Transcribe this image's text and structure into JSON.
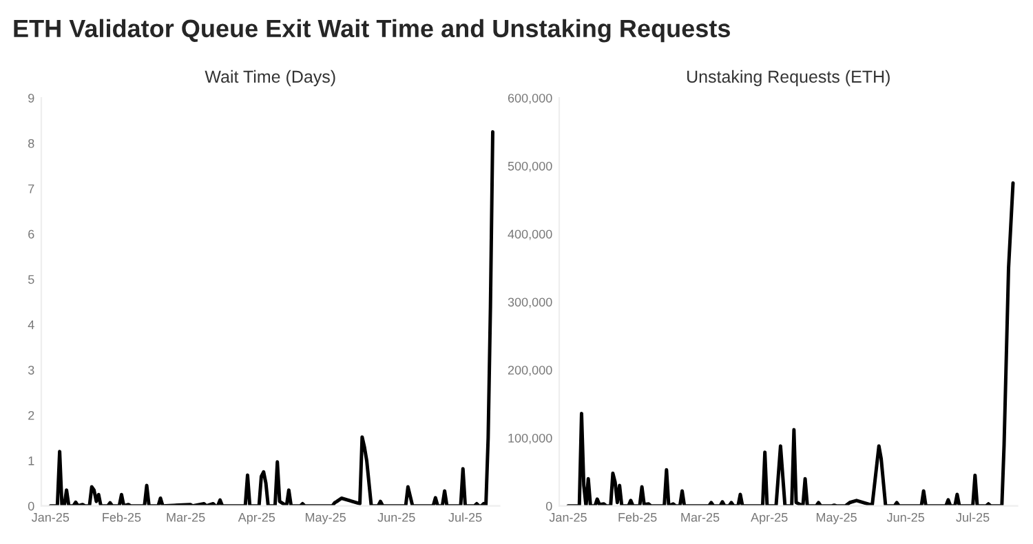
{
  "chart_data": [
    {
      "type": "line",
      "title": "ETH Validator Queue Exit Wait Time and Unstaking Requests",
      "subtitle": "Wait Time (Days)",
      "xlim": [
        "2024-12-28",
        "2025-07-16"
      ],
      "ylim": [
        0,
        9
      ],
      "yticks": [
        0,
        1,
        2,
        3,
        4,
        5,
        6,
        7,
        8,
        9
      ],
      "xticks": [
        {
          "value": "2025-01-01",
          "label": "Jan-25"
        },
        {
          "value": "2025-02-01",
          "label": "Feb-25"
        },
        {
          "value": "2025-03-01",
          "label": "Mar-25"
        },
        {
          "value": "2025-04-01",
          "label": "Apr-25"
        },
        {
          "value": "2025-05-01",
          "label": "May-25"
        },
        {
          "value": "2025-06-01",
          "label": "Jun-25"
        },
        {
          "value": "2025-07-01",
          "label": "Jul-25"
        }
      ],
      "grid": false,
      "marker": "none",
      "line_style": "solid",
      "series": [
        {
          "color": "#000000",
          "x": [
            "2025-01-01",
            "2025-01-04",
            "2025-01-05",
            "2025-01-06",
            "2025-01-07",
            "2025-01-08",
            "2025-01-09",
            "2025-01-11",
            "2025-01-12",
            "2025-01-13",
            "2025-01-15",
            "2025-01-16",
            "2025-01-18",
            "2025-01-19",
            "2025-01-20",
            "2025-01-21",
            "2025-01-22",
            "2025-01-23",
            "2025-01-26",
            "2025-01-27",
            "2025-01-28",
            "2025-01-31",
            "2025-02-01",
            "2025-02-02",
            "2025-02-04",
            "2025-02-05",
            "2025-02-11",
            "2025-02-12",
            "2025-02-13",
            "2025-02-17",
            "2025-02-18",
            "2025-02-19",
            "2025-03-03",
            "2025-03-04",
            "2025-03-09",
            "2025-03-10",
            "2025-03-13",
            "2025-03-14",
            "2025-03-15",
            "2025-03-16",
            "2025-03-17",
            "2025-03-27",
            "2025-03-28",
            "2025-03-29",
            "2025-04-02",
            "2025-04-03",
            "2025-04-04",
            "2025-04-05",
            "2025-04-06",
            "2025-04-09",
            "2025-04-10",
            "2025-04-11",
            "2025-04-14",
            "2025-04-15",
            "2025-04-16",
            "2025-04-20",
            "2025-04-21",
            "2025-04-22",
            "2025-05-04",
            "2025-05-05",
            "2025-05-06",
            "2025-05-08",
            "2025-05-16",
            "2025-05-17",
            "2025-05-18",
            "2025-05-19",
            "2025-05-21",
            "2025-05-24",
            "2025-05-25",
            "2025-05-26",
            "2025-06-05",
            "2025-06-06",
            "2025-06-08",
            "2025-06-17",
            "2025-06-18",
            "2025-06-19",
            "2025-06-21",
            "2025-06-22",
            "2025-06-23",
            "2025-06-29",
            "2025-06-30",
            "2025-07-01",
            "2025-07-05",
            "2025-07-06",
            "2025-07-07",
            "2025-07-08",
            "2025-07-09",
            "2025-07-10",
            "2025-07-11",
            "2025-07-12",
            "2025-07-13"
          ],
          "values": [
            0,
            0,
            1.2,
            0,
            0,
            0.35,
            0,
            0,
            0.08,
            0,
            0.03,
            0,
            0,
            0.42,
            0.35,
            0.1,
            0.25,
            0,
            0,
            0.07,
            0,
            0,
            0.25,
            0,
            0.03,
            0,
            0,
            0.45,
            0,
            0,
            0.17,
            0,
            0.03,
            0,
            0.05,
            0,
            0.05,
            0,
            0,
            0.13,
            0,
            0,
            0.68,
            0,
            0,
            0.65,
            0.75,
            0.5,
            0,
            0,
            0.97,
            0.1,
            0,
            0.35,
            0,
            0,
            0.05,
            0,
            0,
            0.07,
            0.1,
            0.17,
            0.05,
            1.52,
            1.3,
            1.0,
            0,
            0,
            0.1,
            0,
            0,
            0.42,
            0,
            0,
            0.18,
            0,
            0,
            0.33,
            0,
            0,
            0.82,
            0,
            0,
            0.05,
            0,
            0,
            0.05,
            0,
            1.5,
            4.4,
            8.25
          ]
        }
      ]
    },
    {
      "type": "line",
      "subtitle": "Unstaking Requests (ETH)",
      "xlim": [
        "2024-12-28",
        "2025-07-21"
      ],
      "ylim": [
        0,
        600000
      ],
      "yticks": [
        {
          "value": 0,
          "label": "0"
        },
        {
          "value": 100000,
          "label": "100,000"
        },
        {
          "value": 200000,
          "label": "200,000"
        },
        {
          "value": 300000,
          "label": "300,000"
        },
        {
          "value": 400000,
          "label": "400,000"
        },
        {
          "value": 500000,
          "label": "500,000"
        },
        {
          "value": 600000,
          "label": "600,000"
        }
      ],
      "xticks": [
        {
          "value": "2025-01-01",
          "label": "Jan-25"
        },
        {
          "value": "2025-02-01",
          "label": "Feb-25"
        },
        {
          "value": "2025-03-01",
          "label": "Mar-25"
        },
        {
          "value": "2025-04-01",
          "label": "Apr-25"
        },
        {
          "value": "2025-05-01",
          "label": "May-25"
        },
        {
          "value": "2025-06-01",
          "label": "Jun-25"
        },
        {
          "value": "2025-07-01",
          "label": "Jul-25"
        }
      ],
      "grid": false,
      "marker": "none",
      "line_style": "solid",
      "series": [
        {
          "color": "#000000",
          "x": [
            "2025-01-01",
            "2025-01-06",
            "2025-01-07",
            "2025-01-08",
            "2025-01-09",
            "2025-01-10",
            "2025-01-11",
            "2025-01-13",
            "2025-01-14",
            "2025-01-15",
            "2025-01-17",
            "2025-01-18",
            "2025-01-20",
            "2025-01-21",
            "2025-01-22",
            "2025-01-23",
            "2025-01-24",
            "2025-01-25",
            "2025-01-28",
            "2025-01-29",
            "2025-01-30",
            "2025-02-02",
            "2025-02-03",
            "2025-02-04",
            "2025-02-06",
            "2025-02-07",
            "2025-02-13",
            "2025-02-14",
            "2025-02-15",
            "2025-02-17",
            "2025-02-18",
            "2025-02-20",
            "2025-02-21",
            "2025-02-22",
            "2025-03-05",
            "2025-03-06",
            "2025-03-07",
            "2025-03-10",
            "2025-03-11",
            "2025-03-12",
            "2025-03-14",
            "2025-03-15",
            "2025-03-16",
            "2025-03-18",
            "2025-03-19",
            "2025-03-20",
            "2025-03-29",
            "2025-03-30",
            "2025-03-31",
            "2025-04-04",
            "2025-04-06",
            "2025-04-08",
            "2025-04-11",
            "2025-04-12",
            "2025-04-13",
            "2025-04-16",
            "2025-04-17",
            "2025-04-18",
            "2025-04-22",
            "2025-04-23",
            "2025-04-24",
            "2025-04-29",
            "2025-04-30",
            "2025-05-01",
            "2025-05-05",
            "2025-05-07",
            "2025-05-10",
            "2025-05-17",
            "2025-05-20",
            "2025-05-21",
            "2025-05-23",
            "2025-05-27",
            "2025-05-28",
            "2025-05-29",
            "2025-06-08",
            "2025-06-09",
            "2025-06-10",
            "2025-06-19",
            "2025-06-20",
            "2025-06-21",
            "2025-06-23",
            "2025-06-24",
            "2025-06-25",
            "2025-07-01",
            "2025-07-02",
            "2025-07-03",
            "2025-07-07",
            "2025-07-08",
            "2025-07-09",
            "2025-07-14",
            "2025-07-15",
            "2025-07-17",
            "2025-07-19"
          ],
          "values": [
            0,
            0,
            136000,
            30000,
            0,
            40000,
            0,
            0,
            10000,
            2000,
            3000,
            0,
            0,
            48000,
            35000,
            5000,
            30000,
            0,
            0,
            8000,
            0,
            0,
            28000,
            2000,
            3000,
            0,
            0,
            53000,
            0,
            3000,
            0,
            0,
            22000,
            0,
            0,
            5000,
            0,
            0,
            6000,
            0,
            0,
            5000,
            0,
            0,
            17000,
            0,
            0,
            79000,
            0,
            0,
            88000,
            0,
            0,
            112000,
            5000,
            0,
            40000,
            0,
            0,
            5000,
            0,
            0,
            1000,
            0,
            0,
            5000,
            8000,
            1000,
            88000,
            70000,
            0,
            0,
            5000,
            0,
            0,
            22000,
            0,
            0,
            9000,
            0,
            0,
            17000,
            0,
            0,
            45000,
            0,
            0,
            3000,
            0,
            0,
            90000,
            350000,
            475000
          ]
        }
      ]
    }
  ]
}
